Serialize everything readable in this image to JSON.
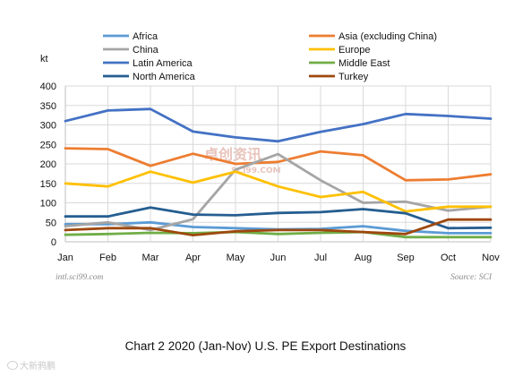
{
  "chart_data": {
    "type": "line",
    "ylabel": "kt",
    "ylim": [
      0,
      400
    ],
    "yticks": [
      0,
      50,
      100,
      150,
      200,
      250,
      300,
      350,
      400
    ],
    "categories": [
      "Jan",
      "Feb",
      "Mar",
      "Apr",
      "May",
      "Jun",
      "Jul",
      "Aug",
      "Sep",
      "Oct",
      "Nov"
    ],
    "grid": true,
    "legend_position": "top",
    "series": [
      {
        "name": "Africa",
        "color": "#5b9bd5",
        "values": [
          45,
          45,
          50,
          38,
          35,
          32,
          33,
          40,
          28,
          22,
          22
        ]
      },
      {
        "name": "Asia (excluding China)",
        "color": "#ed7d31",
        "values": [
          240,
          238,
          195,
          226,
          200,
          205,
          232,
          222,
          158,
          160,
          173
        ]
      },
      {
        "name": "China",
        "color": "#a5a5a5",
        "values": [
          40,
          50,
          30,
          58,
          185,
          225,
          158,
          100,
          103,
          80,
          90
        ]
      },
      {
        "name": "Europe",
        "color": "#ffc000",
        "values": [
          150,
          142,
          180,
          152,
          180,
          142,
          115,
          128,
          78,
          90,
          90
        ]
      },
      {
        "name": "Latin America",
        "color": "#4472c4",
        "values": [
          310,
          337,
          341,
          283,
          268,
          258,
          282,
          302,
          328,
          323,
          316
        ]
      },
      {
        "name": "Middle East",
        "color": "#70ad47",
        "values": [
          18,
          20,
          23,
          22,
          25,
          20,
          23,
          25,
          12,
          12,
          12
        ]
      },
      {
        "name": "North America",
        "color": "#255e91",
        "values": [
          65,
          65,
          88,
          70,
          68,
          74,
          76,
          84,
          73,
          35,
          36
        ]
      },
      {
        "name": "Turkey",
        "color": "#9e480e",
        "values": [
          30,
          35,
          35,
          17,
          27,
          30,
          30,
          25,
          20,
          57,
          57
        ]
      }
    ]
  },
  "notes": {
    "left": "intl.sci99.com",
    "right": "Source: SCI"
  },
  "watermark": {
    "text": "卓创资讯",
    "sub": "SCI99.COM"
  },
  "caption": "Chart 2 2020 (Jan-Nov) U.S. PE Export Destinations",
  "corner_logo": {
    "icon": "camera-ring-icon",
    "text": "大新鸦鹏"
  }
}
